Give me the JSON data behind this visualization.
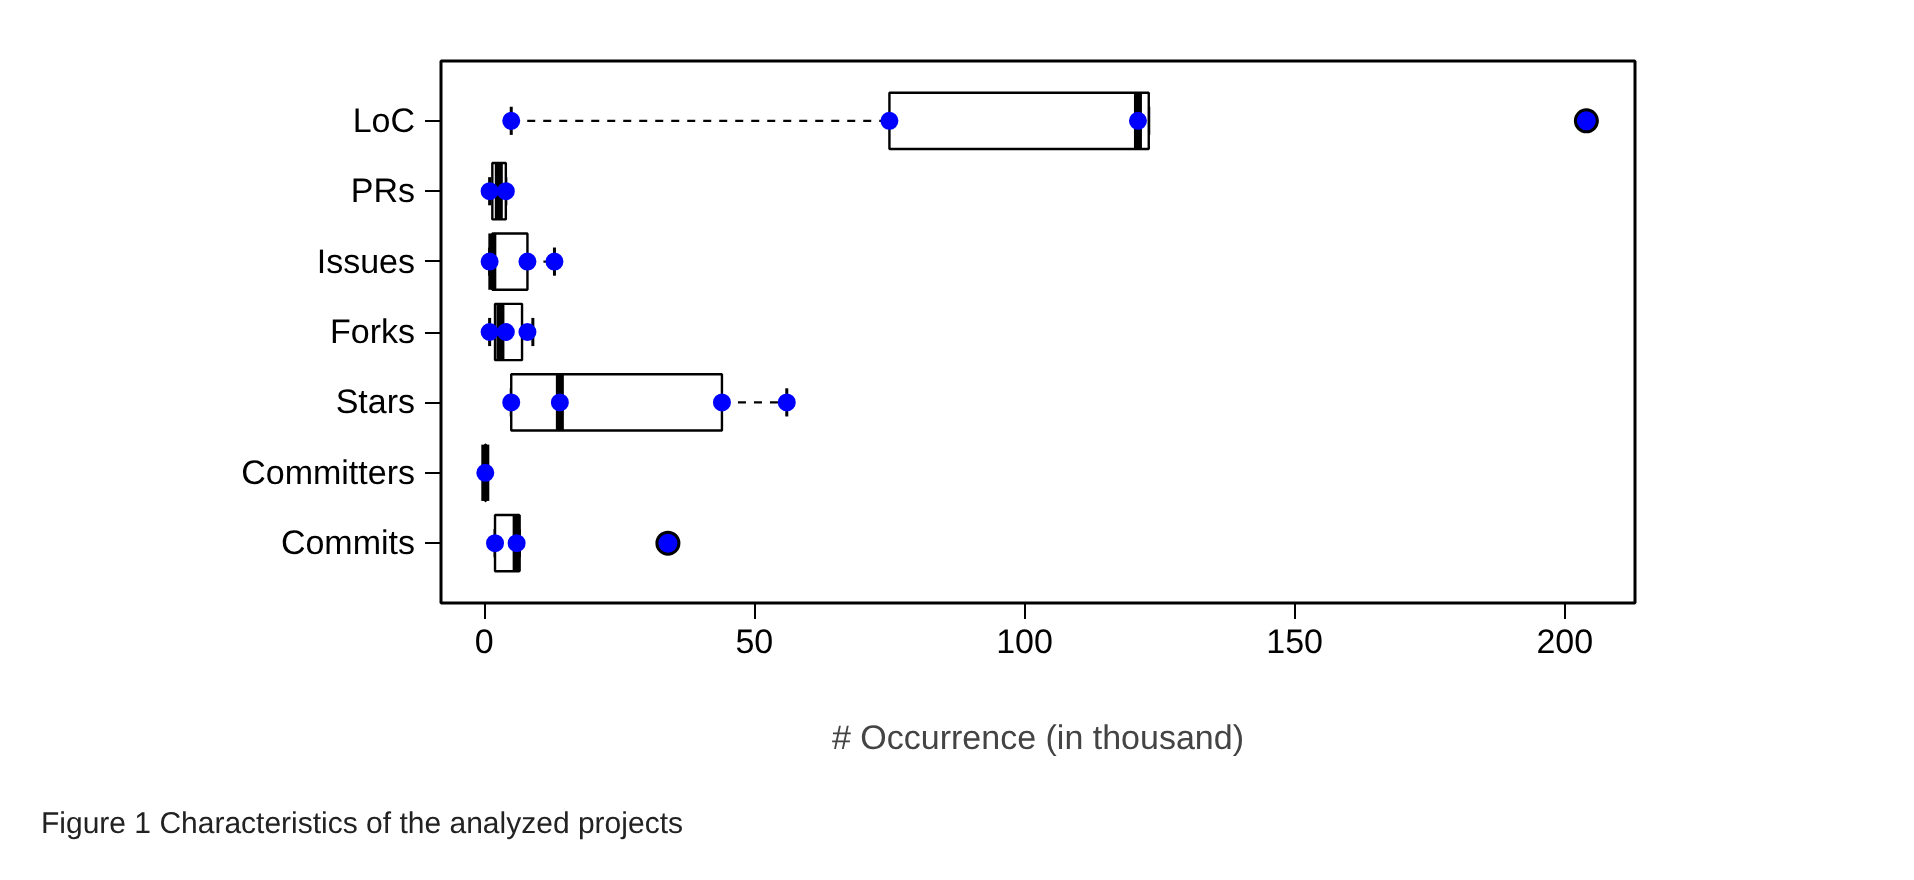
{
  "chart_data": {
    "type": "box",
    "orientation": "horizontal",
    "categories": [
      "LoC",
      "PRs",
      "Issues",
      "Forks",
      "Stars",
      "Committers",
      "Commits"
    ],
    "boxes": [
      {
        "low": 5,
        "q1": 75,
        "median": 121,
        "q3": 123,
        "high": 123,
        "outliers": [
          204
        ]
      },
      {
        "low": 1,
        "q1": 1.5,
        "median": 2.7,
        "q3": 4,
        "high": 4
      },
      {
        "low": 1,
        "q1": 1.5,
        "median": 1.5,
        "q3": 8,
        "high": 13
      },
      {
        "low": 1,
        "q1": 2,
        "median": 3,
        "q3": 7,
        "high": 9
      },
      {
        "low": 5,
        "q1": 5,
        "median": 14,
        "q3": 44,
        "high": 56
      },
      {
        "low": 0.2,
        "q1": 0.2,
        "median": 0.2,
        "q3": 0.3,
        "high": 0.3
      },
      {
        "low": 2,
        "q1": 2,
        "median": 6,
        "q3": 6.5,
        "high": 6.5,
        "outliers": [
          34
        ]
      }
    ],
    "series": [
      {
        "type": "scatter",
        "color": "#0000ff",
        "marker": "circle",
        "x": [
          "LoC",
          "LoC",
          "LoC",
          "PRs",
          "PRs",
          "Issues",
          "Issues",
          "Issues",
          "Forks",
          "Forks",
          "Forks",
          "Stars",
          "Stars",
          "Stars",
          "Stars",
          "Committers",
          "Commits",
          "Commits"
        ],
        "values": [
          5,
          75,
          121,
          1,
          4,
          1,
          8,
          13,
          1,
          4,
          8,
          5,
          14,
          44,
          56,
          0.2,
          2,
          6
        ]
      }
    ],
    "xlim": [
      -8,
      213
    ],
    "xticks": [
      0,
      50,
      100,
      150,
      200
    ],
    "xlabel": "# Occurrence (in thousand)",
    "annotations": [
      "Figure 1  Characteristics of the analyzed projects"
    ],
    "grid": false
  }
}
